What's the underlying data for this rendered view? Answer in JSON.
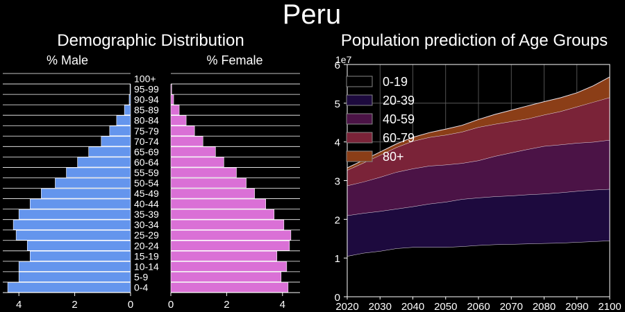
{
  "page_title": "Peru",
  "chart_data": [
    {
      "type": "bar",
      "title": "Demographic Distribution",
      "left_label": "% Male",
      "right_label": "% Female",
      "categories": [
        "0-4",
        "5-9",
        "10-14",
        "15-19",
        "20-24",
        "25-29",
        "30-34",
        "35-39",
        "40-44",
        "45-49",
        "50-54",
        "55-59",
        "60-64",
        "65-69",
        "70-74",
        "75-79",
        "80-84",
        "85-89",
        "90-94",
        "95-99",
        "100+"
      ],
      "series": [
        {
          "name": "% Male",
          "values": [
            4.4,
            4.0,
            4.0,
            3.6,
            3.7,
            4.1,
            4.2,
            4.0,
            3.6,
            3.2,
            2.7,
            2.3,
            1.9,
            1.5,
            1.05,
            0.75,
            0.5,
            0.22,
            0.05,
            0.02,
            0.0
          ],
          "color": "#6495ed"
        },
        {
          "name": "% Female",
          "values": [
            4.2,
            3.95,
            4.15,
            3.8,
            4.25,
            4.3,
            4.05,
            3.7,
            3.4,
            3.0,
            2.7,
            2.35,
            1.9,
            1.6,
            1.15,
            0.85,
            0.55,
            0.3,
            0.1,
            0.03,
            0.0
          ],
          "color": "#da70d6"
        }
      ],
      "xlim": [
        0,
        4.5
      ],
      "xticks": [
        "0",
        "2",
        "4"
      ]
    },
    {
      "type": "area",
      "title": "Population prediction of Age Groups",
      "x": [
        2020,
        2025,
        2030,
        2035,
        2040,
        2045,
        2050,
        2055,
        2060,
        2065,
        2070,
        2075,
        2080,
        2085,
        2090,
        2095,
        2100
      ],
      "series": [
        {
          "name": "0-19",
          "values": [
            10.5,
            11.3,
            11.8,
            12.5,
            12.8,
            12.8,
            12.8,
            13.0,
            13.3,
            13.5,
            13.6,
            13.7,
            13.8,
            13.9,
            14.1,
            14.3,
            14.5
          ],
          "color": "#000000"
        },
        {
          "name": "20-39",
          "values": [
            10.5,
            10.3,
            10.3,
            10.2,
            10.5,
            11.2,
            11.7,
            12.2,
            12.3,
            12.4,
            12.5,
            12.7,
            12.8,
            13.0,
            13.2,
            13.3,
            13.3
          ],
          "color": "#1d0a3e"
        },
        {
          "name": "40-59",
          "values": [
            7.7,
            8.1,
            8.8,
            9.5,
            9.8,
            9.8,
            9.6,
            9.3,
            9.6,
            10.4,
            11.1,
            11.7,
            12.3,
            12.4,
            12.4,
            12.4,
            12.7
          ],
          "color": "#4b1346"
        },
        {
          "name": "60-79",
          "values": [
            4.0,
            4.9,
            5.7,
            6.4,
            7.1,
            7.4,
            7.7,
            8.1,
            8.6,
            8.3,
            8.1,
            7.9,
            8.1,
            8.6,
            9.4,
            10.3,
            11.0
          ],
          "color": "#7a2338"
        },
        {
          "name": "80+",
          "values": [
            0.6,
            0.7,
            0.8,
            0.9,
            1.0,
            1.2,
            1.5,
            1.7,
            2.0,
            2.5,
            2.9,
            3.3,
            3.4,
            3.5,
            3.6,
            4.2,
            5.3
          ],
          "color": "#8b3e17"
        }
      ],
      "ylim": [
        0,
        60
      ],
      "yticks": [
        "0",
        "1",
        "2",
        "3",
        "4",
        "5",
        "6"
      ],
      "y_multiplier": "1e7",
      "xticks": [
        "2020",
        "2030",
        "2040",
        "2050",
        "2060",
        "2070",
        "2080",
        "2090",
        "2100"
      ],
      "grid": true,
      "legend_position": "top-left"
    }
  ]
}
